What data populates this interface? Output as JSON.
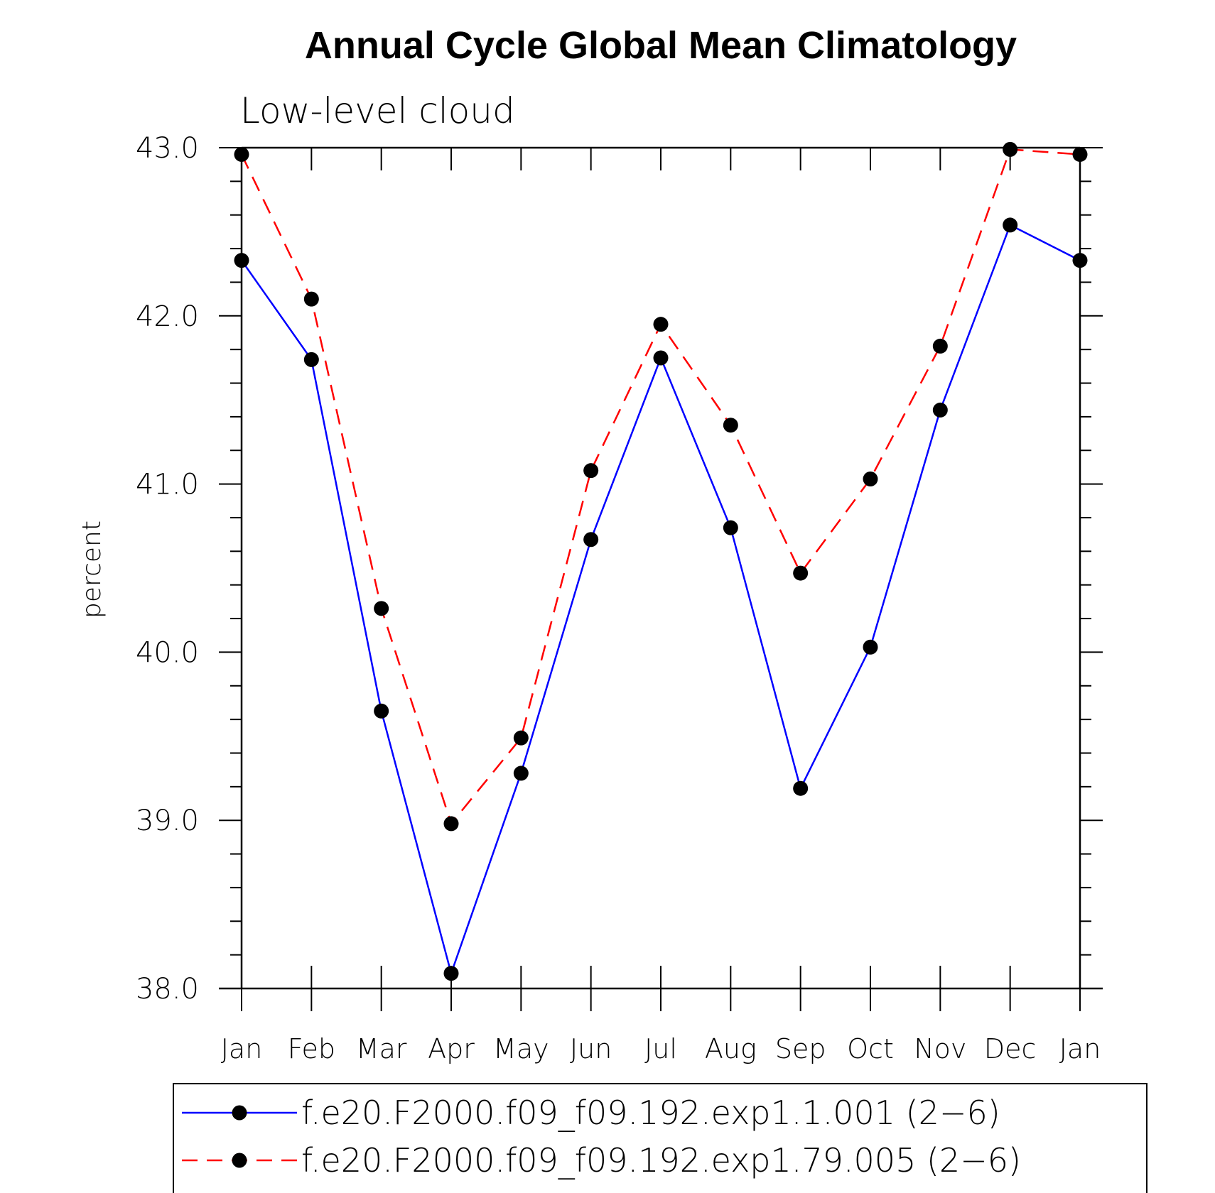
{
  "chart_data": {
    "type": "line",
    "title": "Annual Cycle Global Mean Climatology",
    "subtitle": "Low-level cloud",
    "xlabel": "",
    "ylabel": "percent",
    "categories": [
      "Jan",
      "Feb",
      "Mar",
      "Apr",
      "May",
      "Jun",
      "Jul",
      "Aug",
      "Sep",
      "Oct",
      "Nov",
      "Dec",
      "Jan"
    ],
    "ylim": [
      38.0,
      43.0
    ],
    "yticks": [
      "38.0",
      "39.0",
      "40.0",
      "41.0",
      "42.0",
      "43.0"
    ],
    "grid": false,
    "legend_position": "bottom",
    "series": [
      {
        "name": "f.e20.F2000.f09_f09.192.exp1.1.001 (2−6)",
        "color": "#0000ff",
        "line_style": "solid",
        "marker": "filled-circle",
        "values": [
          42.33,
          41.74,
          39.65,
          38.09,
          39.28,
          40.67,
          41.75,
          40.74,
          39.19,
          40.03,
          41.44,
          42.54,
          42.33
        ]
      },
      {
        "name": "f.e20.F2000.f09_f09.192.exp1.79.005 (2−6)",
        "color": "#ff0000",
        "line_style": "dashed",
        "marker": "filled-circle",
        "values": [
          42.96,
          42.1,
          40.26,
          38.98,
          39.49,
          41.08,
          41.95,
          41.35,
          40.47,
          41.03,
          41.82,
          42.99,
          42.96
        ]
      }
    ]
  },
  "colors": {
    "marker": "#000000",
    "axis": "#000000",
    "background": "#ffffff"
  }
}
